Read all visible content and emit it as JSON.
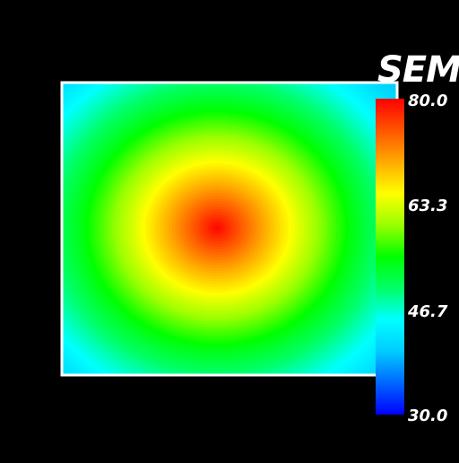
{
  "chart_data": {
    "type": "heatmap",
    "title": "",
    "xlabel": "",
    "ylabel": "",
    "variable": "SEM",
    "field": {
      "shape": "radial",
      "peak_value": 80.0,
      "edge_value": 42.0,
      "corner_value": 38.0,
      "peak_location": "center-left of plot area"
    },
    "colorbar": {
      "title": "SEM",
      "min": 30.0,
      "max": 80.0,
      "tick_values": [
        80.0,
        63.3,
        46.7,
        30.0
      ],
      "tick_labels": [
        "80.0",
        "63.3",
        "46.7",
        "30.0"
      ],
      "placement": "right",
      "colormap": [
        "#0000ff",
        "#0066ff",
        "#00ccff",
        "#00ffff",
        "#00ff66",
        "#00ff00",
        "#99ff00",
        "#ffff00",
        "#ffaa00",
        "#ff5500",
        "#ff0000"
      ]
    },
    "grid": false,
    "legend": "right"
  },
  "colors": {
    "background": "#000000",
    "frame": "#ffffff",
    "text": "#ffffff"
  }
}
